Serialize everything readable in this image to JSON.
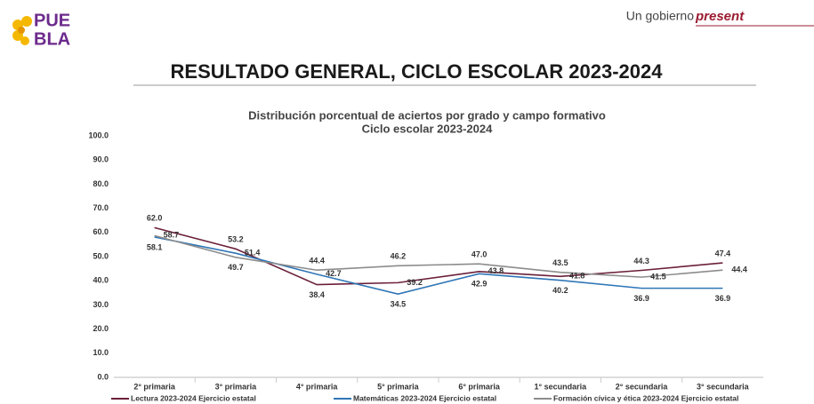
{
  "header": {
    "logo": [
      "PUE",
      "BLA"
    ],
    "tagline": [
      "Un gobierno",
      "present"
    ],
    "title": "RESULTADO GENERAL, CICLO ESCOLAR 2023-2024"
  },
  "chart_data": {
    "type": "line",
    "title": "Distribución porcentual de aciertos por grado y campo formativo",
    "subtitle": "Ciclo escolar 2023-2024",
    "categories": [
      "2° primaria",
      "3° primaria",
      "4° primaria",
      "5° primaria",
      "6° primaria",
      "1° secundaria",
      "2° secundaria",
      "3° secundaria"
    ],
    "series": [
      {
        "name": "Lectura 2023-2024 Ejercicio estatal",
        "color": "#6b1f3a",
        "values": [
          62.0,
          53.2,
          38.4,
          39.2,
          43.8,
          41.8,
          44.3,
          47.4
        ],
        "value_labels": [
          "62.0",
          "53.2",
          "38.4",
          "39.2",
          "43.8",
          "41.8",
          "44.3",
          "47.4"
        ]
      },
      {
        "name": "Matemáticas 2023-2024 Ejercicio estatal",
        "color": "#2e75b6",
        "values": [
          58.1,
          51.4,
          42.7,
          34.5,
          42.9,
          40.2,
          36.9,
          36.9
        ],
        "value_labels": [
          "58.1",
          "51.4",
          "42.7",
          "34.5",
          "42.9",
          "40.2",
          "36.9",
          "36.9"
        ]
      },
      {
        "name": "Formación cívica y ética 2023-2024 Ejercicio estatal",
        "color": "#8c8c8c",
        "values": [
          58.7,
          49.7,
          44.4,
          46.2,
          47.0,
          43.5,
          41.5,
          44.4
        ],
        "value_labels": [
          "58.7",
          "49.7",
          "44.4",
          "46.2",
          "47.0",
          "43.5",
          "41.5",
          "44.4"
        ]
      }
    ],
    "ylim": [
      0,
      100
    ],
    "yticks": [
      {
        "value": 0,
        "label": "0.0"
      },
      {
        "value": 10,
        "label": "10.0"
      },
      {
        "value": 20,
        "label": "20.0"
      },
      {
        "value": 30,
        "label": "30.0"
      },
      {
        "value": 40,
        "label": "40.0"
      },
      {
        "value": 50,
        "label": "50.0"
      },
      {
        "value": 60,
        "label": "60.0"
      },
      {
        "value": 70,
        "label": "70.0"
      },
      {
        "value": 80,
        "label": "80.0"
      },
      {
        "value": 90,
        "label": "90.0"
      },
      {
        "value": 100,
        "label": "100.0"
      }
    ],
    "legend": "bottom"
  }
}
